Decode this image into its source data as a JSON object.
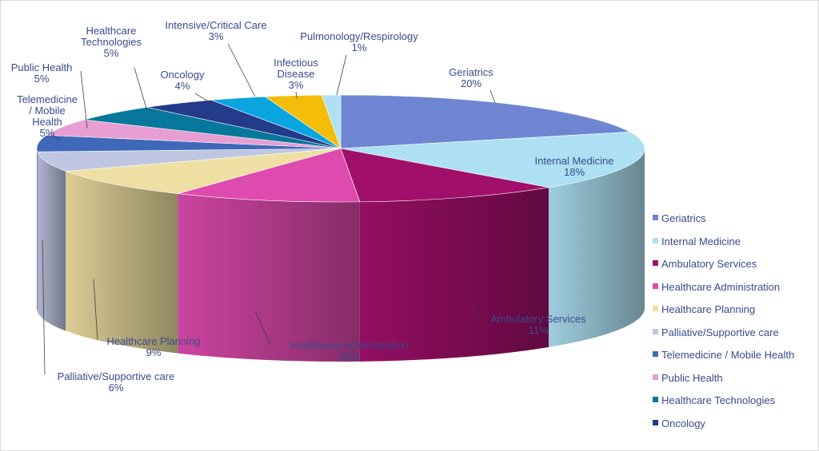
{
  "chart_data": {
    "type": "pie",
    "title": "",
    "legend_position": "right",
    "slices": [
      {
        "name": "Geriatrics",
        "value": 20,
        "label": "20%",
        "color": "#6e86d2"
      },
      {
        "name": "Internal Medicine",
        "value": 18,
        "label": "18%",
        "color": "#ade0f2"
      },
      {
        "name": "Ambulatory Services",
        "value": 11,
        "label": "11%",
        "color": "#a10f6a"
      },
      {
        "name": "Healthcare Administration",
        "value": 10,
        "label": "10%",
        "color": "#de4aae"
      },
      {
        "name": "Healthcare Planning",
        "value": 9,
        "label": "9%",
        "color": "#efdfa2"
      },
      {
        "name": "Palliative/Supportive care",
        "value": 6,
        "label": "6%",
        "color": "#bec6e2"
      },
      {
        "name": "Telemedicine / Mobile Health",
        "value": 5,
        "label": "5%",
        "color": "#3f69b8"
      },
      {
        "name": "Public Health",
        "value": 5,
        "label": "5%",
        "color": "#e79ed2"
      },
      {
        "name": "Healthcare Technologies",
        "value": 5,
        "label": "5%",
        "color": "#06779a"
      },
      {
        "name": "Oncology",
        "value": 4,
        "label": "4%",
        "color": "#223c8a"
      },
      {
        "name": "Intensive/Critical Care",
        "value": 3,
        "label": "3%",
        "color": "#0aa4e0"
      },
      {
        "name": "Infectious Disease",
        "value": 3,
        "label": "3%",
        "color": "#f2bc08"
      },
      {
        "name": "Pulmonology/Respirology",
        "value": 1,
        "label": "1%",
        "color": "#afe1f2"
      }
    ],
    "legend": [
      {
        "name": "Geriatrics",
        "color": "#6e86d2"
      },
      {
        "name": "Internal Medicine",
        "color": "#ade0f2"
      },
      {
        "name": "Ambulatory Services",
        "color": "#a10f6a"
      },
      {
        "name": "Healthcare Administration",
        "color": "#de4aae"
      },
      {
        "name": "Healthcare Planning",
        "color": "#efdfa2"
      },
      {
        "name": "Palliative/Supportive care",
        "color": "#bec6e2"
      },
      {
        "name": "Telemedicine / Mobile Health",
        "color": "#3f69b8"
      },
      {
        "name": "Public Health",
        "color": "#e79ed2"
      },
      {
        "name": "Healthcare Technologies",
        "color": "#06779a"
      },
      {
        "name": "Oncology",
        "color": "#223c8a"
      }
    ]
  }
}
